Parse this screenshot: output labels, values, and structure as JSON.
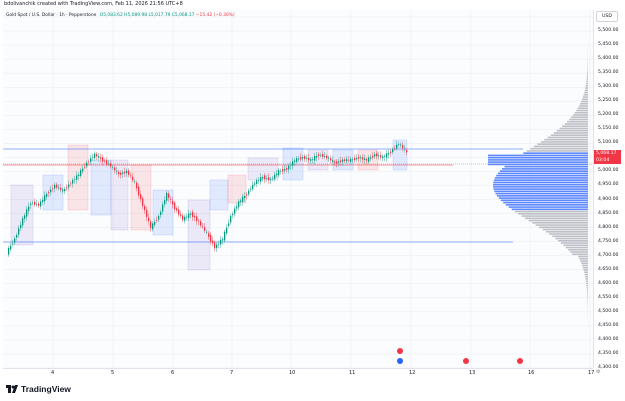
{
  "topbar": {
    "caption": "bdolivanchik created with TradingView.com, Feb 11, 2026 21:56 UTC+8"
  },
  "legend": {
    "symbol": "Gold Spot / U.S. Dollar · 1h · Pepperstone",
    "open": "O5,083.62",
    "high": "H5,089.98",
    "low": "L5,017.79",
    "close": "C5,068.17",
    "change": "−15.42 (−0.30%)"
  },
  "axis": {
    "currency": "USD",
    "labels": [
      "5,550.00",
      "5,500.00",
      "5,450.00",
      "5,400.00",
      "5,350.00",
      "5,300.00",
      "5,250.00",
      "5,200.00",
      "5,150.00",
      "5,100.00",
      "5,050.00",
      "5,000.00",
      "4,950.00",
      "4,900.00",
      "4,850.00",
      "4,800.00",
      "4,750.00",
      "4,700.00",
      "4,650.00",
      "4,600.00",
      "4,550.00",
      "4,500.00",
      "4,450.00",
      "4,400.00",
      "4,350.00",
      "4,300.00"
    ],
    "last_price": "5,068.17",
    "countdown": "03:04"
  },
  "xaxis": {
    "labels": [
      "4",
      "5",
      "6",
      "7",
      "10",
      "11",
      "12",
      "13",
      "16",
      "17"
    ]
  },
  "brand": {
    "name": "TradingView"
  },
  "colors": {
    "up": "#089981",
    "down": "#f23645",
    "profile": "#2962ff",
    "bg": "#ffffff"
  },
  "chart_data": {
    "type": "candlestick",
    "title": "Gold Spot / U.S. Dollar · 1h · Pepperstone",
    "ylim": [
      4300,
      5575
    ],
    "xlabels": [
      "4",
      "5",
      "6",
      "7",
      "10",
      "11",
      "12",
      "13",
      "16",
      "17"
    ],
    "price_path": [
      4710,
      4760,
      4830,
      4890,
      4880,
      4920,
      4950,
      4930,
      4960,
      4990,
      5030,
      5060,
      5040,
      5020,
      4990,
      5000,
      4960,
      4880,
      4800,
      4840,
      4920,
      4870,
      4830,
      4850,
      4820,
      4780,
      4730,
      4760,
      4840,
      4890,
      4920,
      4960,
      4980,
      4970,
      5000,
      5010,
      5040,
      5050,
      5040,
      5060,
      5050,
      5030,
      5040,
      5040,
      5050,
      5040,
      5060,
      5050,
      5070,
      5100,
      5068
    ]
  }
}
